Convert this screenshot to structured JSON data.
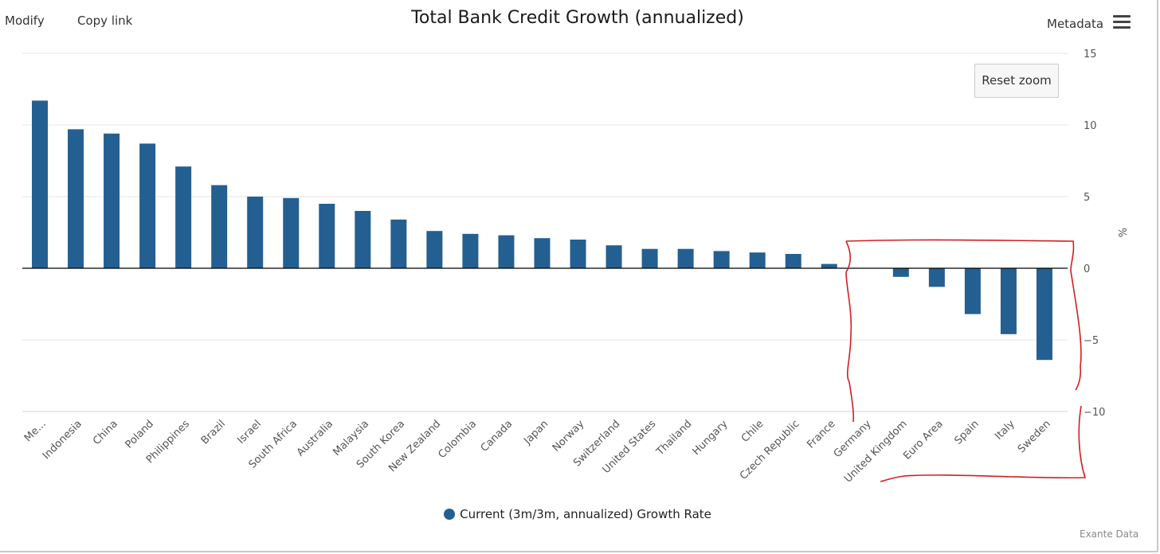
{
  "toolbar": {
    "modify_label": "Modify",
    "copy_link_label": "Copy link",
    "metadata_label": "Metadata",
    "menu_icon": "hamburger-menu-icon"
  },
  "reset_zoom_label": "Reset zoom",
  "credit": "Exante Data",
  "chart_data": {
    "type": "bar",
    "title": "Total Bank Credit Growth (annualized)",
    "xlabel": "",
    "ylabel": "%",
    "ylim": [
      -10,
      15
    ],
    "yticks": [
      15,
      10,
      5,
      0,
      -5,
      -10
    ],
    "ytick_labels": [
      "15",
      "10",
      "5",
      "0",
      "−5",
      "−10"
    ],
    "grid": true,
    "legend_position": "bottom-center",
    "bar_color": "#245f91",
    "categories": [
      "Me...",
      "Indonesia",
      "China",
      "Poland",
      "Philippines",
      "Brazil",
      "Israel",
      "South Africa",
      "Australia",
      "Malaysia",
      "South Korea",
      "New Zealand",
      "Colombia",
      "Canada",
      "Japan",
      "Norway",
      "Switzerland",
      "United States",
      "Thailand",
      "Hungary",
      "Chile",
      "Czech Republic",
      "France",
      "Germany",
      "United Kingdom",
      "Euro Area",
      "Spain",
      "Italy",
      "Sweden"
    ],
    "series": [
      {
        "name": "Current (3m/3m, annualized) Growth Rate",
        "values": [
          11.7,
          9.7,
          9.4,
          8.7,
          7.1,
          5.8,
          5.0,
          4.9,
          4.5,
          4.0,
          3.4,
          2.6,
          2.4,
          2.3,
          2.1,
          2.0,
          1.6,
          1.35,
          1.35,
          1.2,
          1.1,
          1.0,
          0.3,
          0.0,
          -0.6,
          -1.3,
          -3.2,
          -4.6,
          -6.4
        ]
      }
    ],
    "annotation": {
      "type": "hand-drawn-outline",
      "color": "#d21f1f"
    }
  }
}
